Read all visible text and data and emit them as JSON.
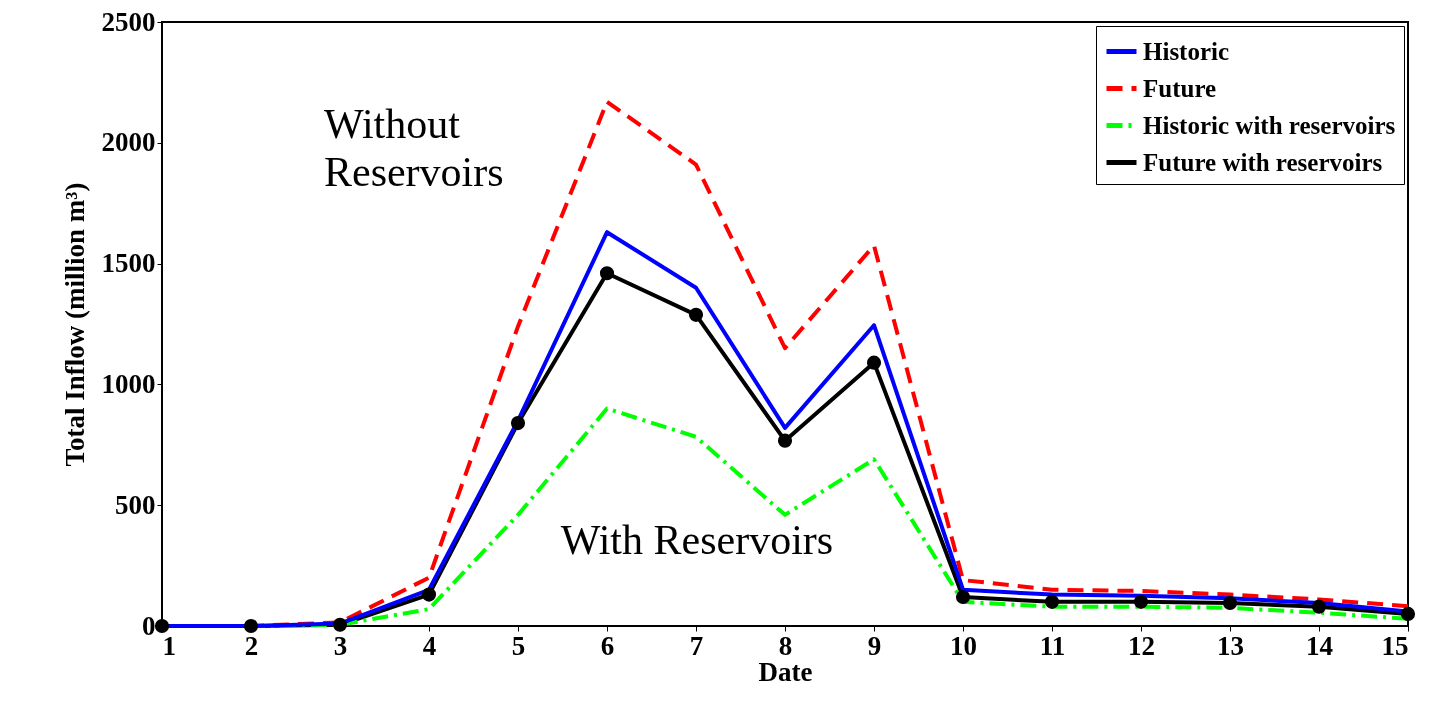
{
  "chart_data": {
    "type": "line",
    "xlabel": "Date",
    "ylabel": "Total Inflow (million m³)",
    "x": [
      1,
      2,
      3,
      4,
      5,
      6,
      7,
      8,
      9,
      10,
      11,
      12,
      13,
      14,
      15
    ],
    "xlim": [
      1,
      15
    ],
    "xticks": [
      1,
      2,
      3,
      4,
      5,
      6,
      7,
      8,
      9,
      10,
      11,
      12,
      13,
      14,
      15
    ],
    "ylim": [
      0,
      2500
    ],
    "yticks": [
      0,
      500,
      1000,
      1500,
      2000,
      2500
    ],
    "grid": false,
    "legend": "top right",
    "series": [
      {
        "name": "Historic",
        "color": "#0000ff",
        "line_style": "solid",
        "marker": "none",
        "values": [
          0,
          0,
          10,
          150,
          850,
          1630,
          1400,
          820,
          1245,
          150,
          130,
          125,
          115,
          95,
          60
        ]
      },
      {
        "name": "Future",
        "color": "#ff0000",
        "line_style": "dashed",
        "marker": "none",
        "values": [
          0,
          0,
          15,
          200,
          1240,
          2170,
          1910,
          1150,
          1575,
          190,
          150,
          145,
          130,
          110,
          82
        ]
      },
      {
        "name": "Historic with reservoirs",
        "color": "#00ff00",
        "line_style": "dashdot",
        "marker": "none",
        "values": [
          0,
          0,
          5,
          70,
          460,
          900,
          783,
          460,
          690,
          100,
          80,
          80,
          75,
          55,
          30
        ]
      },
      {
        "name": "Future with reservoirs",
        "color": "#000000",
        "line_style": "solid",
        "marker": "circle",
        "values": [
          0,
          0,
          5,
          130,
          840,
          1460,
          1288,
          767,
          1090,
          120,
          100,
          100,
          95,
          80,
          50
        ]
      }
    ],
    "annotations": [
      "Without Reservoirs",
      "With Reservoirs"
    ]
  }
}
